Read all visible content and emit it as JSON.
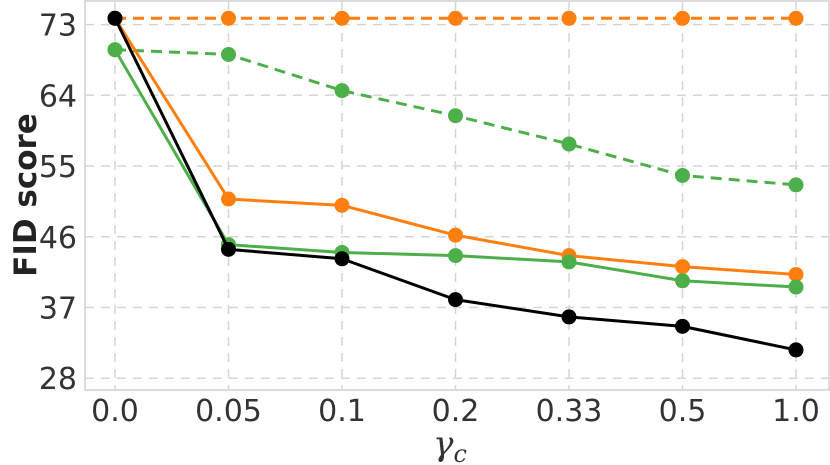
{
  "chart_data": {
    "type": "line",
    "title": "",
    "xlabel": "γ",
    "xlabel_subscript": "c",
    "ylabel": "FID score",
    "categories": [
      "0.0",
      "0.05",
      "0.1",
      "0.2",
      "0.33",
      "0.5",
      "1.0"
    ],
    "yticks": [
      "28",
      "37",
      "46",
      "55",
      "64",
      "73"
    ],
    "ylim": [
      26.5,
      76
    ],
    "grid": true,
    "series": [
      {
        "color": "#ff7f0e",
        "dashed": true,
        "values": [
          73.8,
          73.8,
          73.8,
          73.8,
          73.8,
          73.8,
          73.8
        ]
      },
      {
        "color": "#4daf4a",
        "dashed": true,
        "values": [
          69.8,
          69.2,
          64.6,
          61.4,
          57.8,
          53.8,
          52.6
        ]
      },
      {
        "color": "#ff7f0e",
        "dashed": false,
        "values": [
          73.8,
          50.8,
          50.0,
          46.2,
          43.6,
          42.2,
          41.2
        ]
      },
      {
        "color": "#4daf4a",
        "dashed": false,
        "values": [
          69.8,
          45.0,
          44.0,
          43.6,
          42.8,
          40.4,
          39.6
        ]
      },
      {
        "color": "#000000",
        "dashed": false,
        "values": [
          73.8,
          44.4,
          43.2,
          38.0,
          35.8,
          34.6,
          31.6
        ]
      }
    ]
  }
}
